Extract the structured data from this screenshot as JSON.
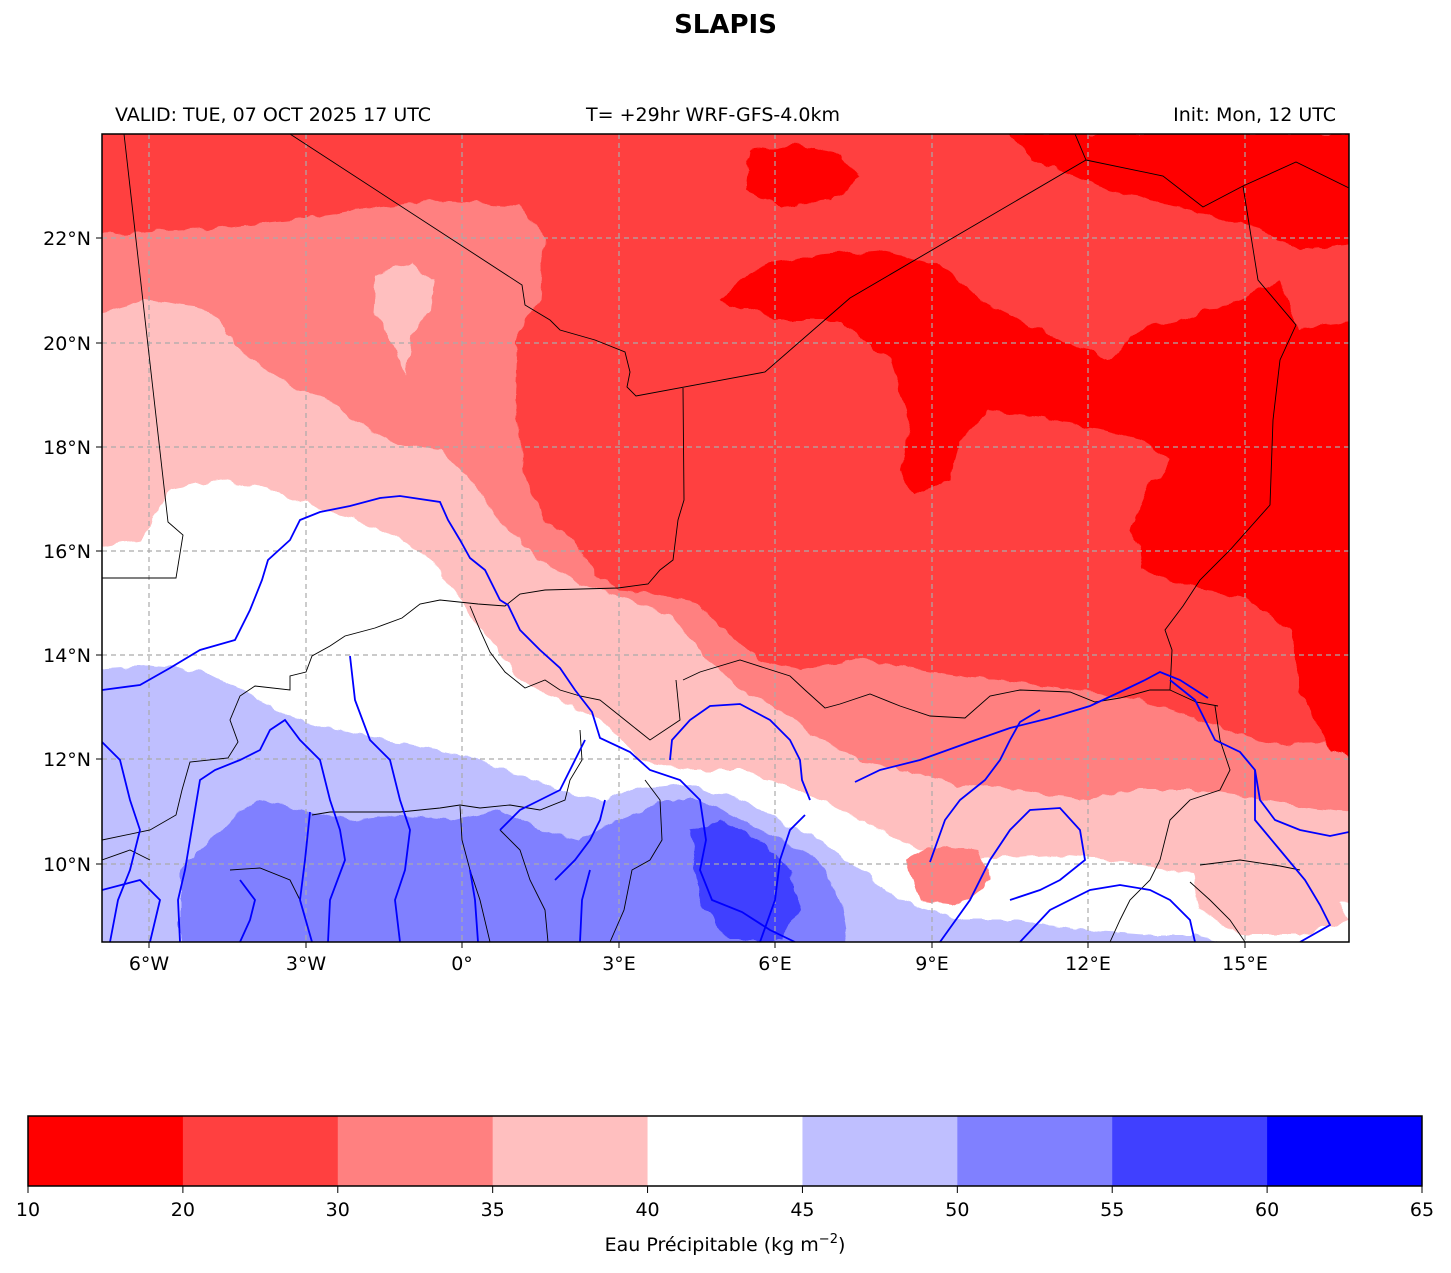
{
  "title": "SLAPIS",
  "valid_label": "VALID: TUE, 07 OCT 2025 17 UTC",
  "forecast_label": "T= +29hr WRF-GFS-4.0km",
  "init_label": "Init: Mon, 12 UTC",
  "map": {
    "lat_ticks": [
      "22°N",
      "20°N",
      "18°N",
      "16°N",
      "14°N",
      "12°N",
      "10°N"
    ],
    "lon_ticks": [
      "6°W",
      "3°W",
      "0°",
      "3°E",
      "6°E",
      "9°E",
      "12°E",
      "15°E"
    ],
    "gridlines": true,
    "field_colors": {
      "10-20": "#ff0000",
      "20-30": "#ff4040",
      "30-35": "#ff8080",
      "35-40": "#ffbfbf",
      "40-45": "#ffffff",
      "45-50": "#bfbfff",
      "50-55": "#8080ff",
      "55-60": "#4040ff",
      "60-65": "#0000ff"
    },
    "river_color": "#0000ff",
    "border_color": "#000000"
  },
  "colorbar": {
    "label_text": "Eau Précipitable (kg m",
    "label_exponent": "−2",
    "label_close": ")",
    "levels": [
      "10",
      "20",
      "30",
      "35",
      "40",
      "45",
      "50",
      "55",
      "60",
      "65"
    ],
    "colors": [
      "#ff0000",
      "#ff4040",
      "#ff8080",
      "#ffbfbf",
      "#ffffff",
      "#bfbfff",
      "#8080ff",
      "#4040ff",
      "#0000ff"
    ]
  }
}
